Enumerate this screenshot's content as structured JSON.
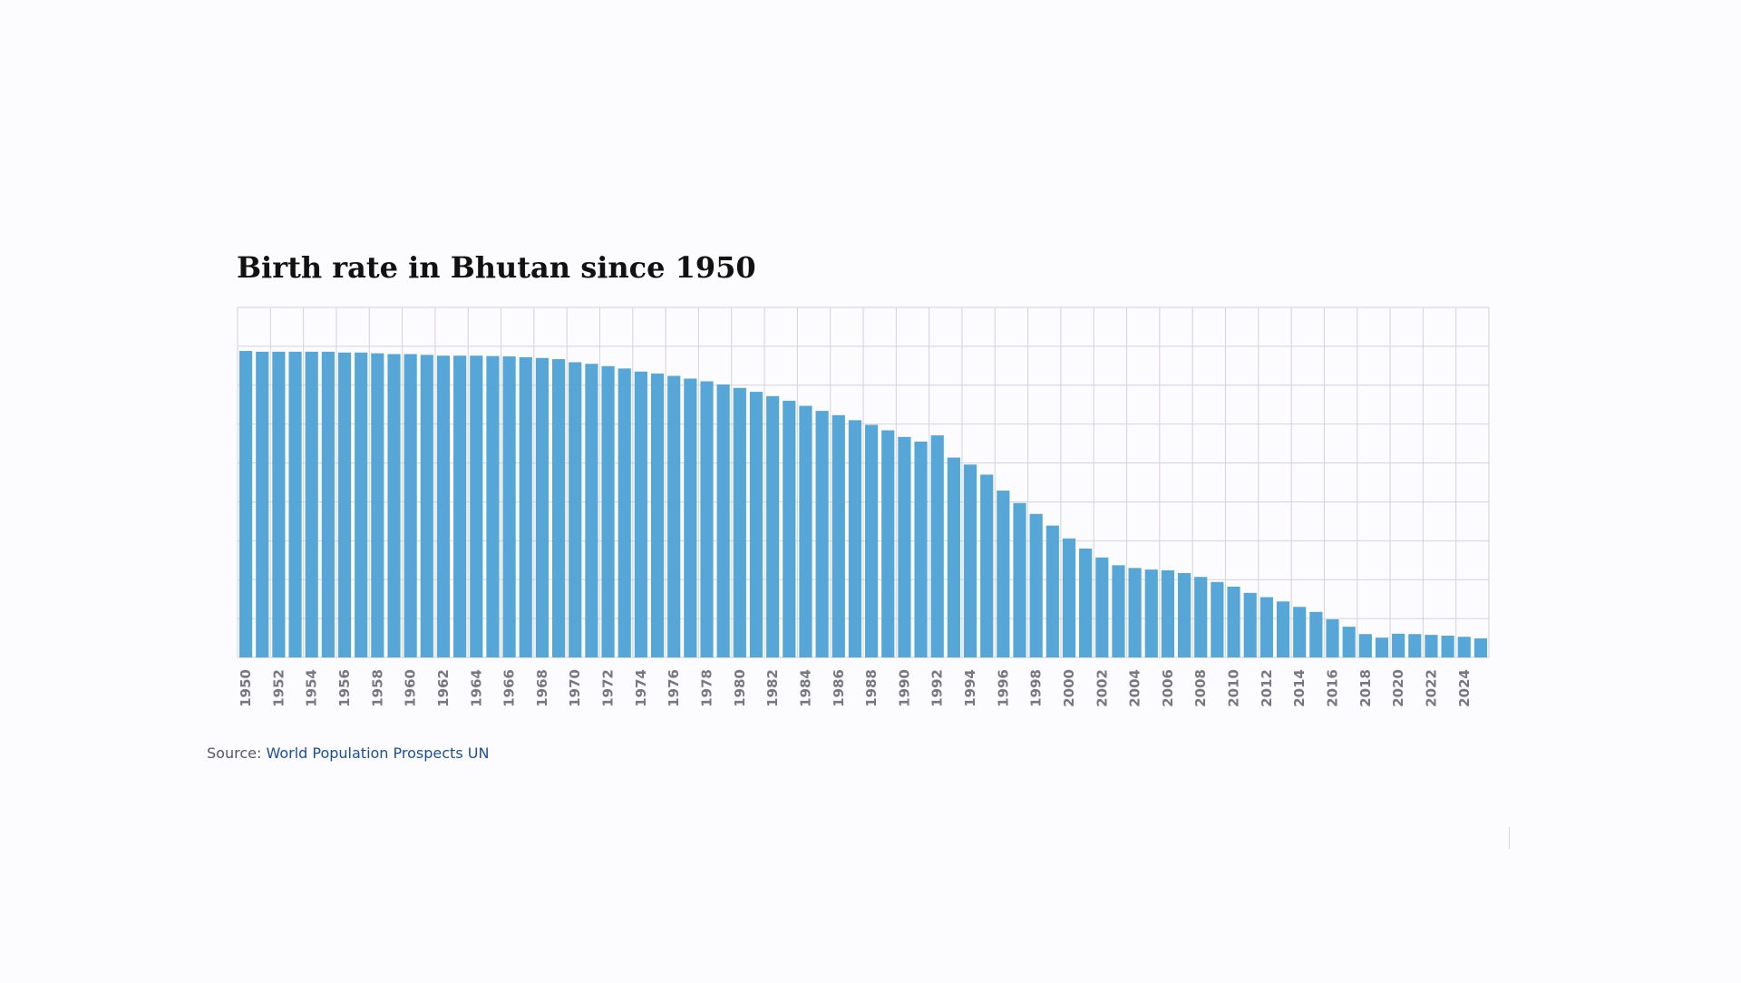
{
  "chart_data": {
    "type": "bar",
    "title": "Birth rate in Bhutan since 1950",
    "xlabel": "",
    "ylabel": "",
    "bar_color": "#56a7d8",
    "grid_color": "#d4d2db",
    "grid": true,
    "y_tick_labels_shown": false,
    "ylim": [
      0,
      9
    ],
    "x_tick_labels": [
      "1950",
      "1952",
      "1954",
      "1956",
      "1958",
      "1960",
      "1962",
      "1964",
      "1966",
      "1968",
      "1970",
      "1972",
      "1974",
      "1976",
      "1978",
      "1980",
      "1982",
      "1984",
      "1986",
      "1988",
      "1990",
      "1992",
      "1994",
      "1996",
      "1998",
      "2000",
      "2002",
      "2004",
      "2006",
      "2008",
      "2010",
      "2012",
      "2014",
      "2016",
      "2018",
      "2020",
      "2022",
      "2024"
    ],
    "categories": [
      "1950",
      "1951",
      "1952",
      "1953",
      "1954",
      "1955",
      "1956",
      "1957",
      "1958",
      "1959",
      "1960",
      "1961",
      "1962",
      "1963",
      "1964",
      "1965",
      "1966",
      "1967",
      "1968",
      "1969",
      "1970",
      "1971",
      "1972",
      "1973",
      "1974",
      "1975",
      "1976",
      "1977",
      "1978",
      "1979",
      "1980",
      "1981",
      "1982",
      "1983",
      "1984",
      "1985",
      "1986",
      "1987",
      "1988",
      "1989",
      "1990",
      "1991",
      "1992",
      "1993",
      "1994",
      "1995",
      "1996",
      "1997",
      "1998",
      "1999",
      "2000",
      "2001",
      "2002",
      "2003",
      "2004",
      "2005",
      "2006",
      "2007",
      "2008",
      "2009",
      "2010",
      "2011",
      "2012",
      "2013",
      "2014",
      "2015",
      "2016",
      "2017",
      "2018",
      "2019",
      "2020",
      "2021",
      "2022",
      "2023",
      "2024",
      "2025"
    ],
    "values": [
      7.88,
      7.86,
      7.86,
      7.86,
      7.86,
      7.86,
      7.84,
      7.84,
      7.82,
      7.8,
      7.8,
      7.78,
      7.76,
      7.76,
      7.76,
      7.75,
      7.74,
      7.72,
      7.7,
      7.67,
      7.59,
      7.55,
      7.49,
      7.43,
      7.35,
      7.3,
      7.24,
      7.17,
      7.1,
      7.02,
      6.93,
      6.83,
      6.72,
      6.6,
      6.47,
      6.34,
      6.23,
      6.1,
      5.98,
      5.84,
      5.67,
      5.55,
      5.71,
      5.14,
      4.96,
      4.7,
      4.29,
      3.97,
      3.69,
      3.39,
      3.06,
      2.8,
      2.57,
      2.37,
      2.3,
      2.26,
      2.24,
      2.17,
      2.07,
      1.94,
      1.82,
      1.66,
      1.55,
      1.44,
      1.3,
      1.17,
      0.98,
      0.79,
      0.6,
      0.51,
      0.61,
      0.6,
      0.58,
      0.56,
      0.53,
      0.49
    ]
  },
  "source": {
    "prefix": "Source: ",
    "link_text": "World Population Prospects UN"
  }
}
